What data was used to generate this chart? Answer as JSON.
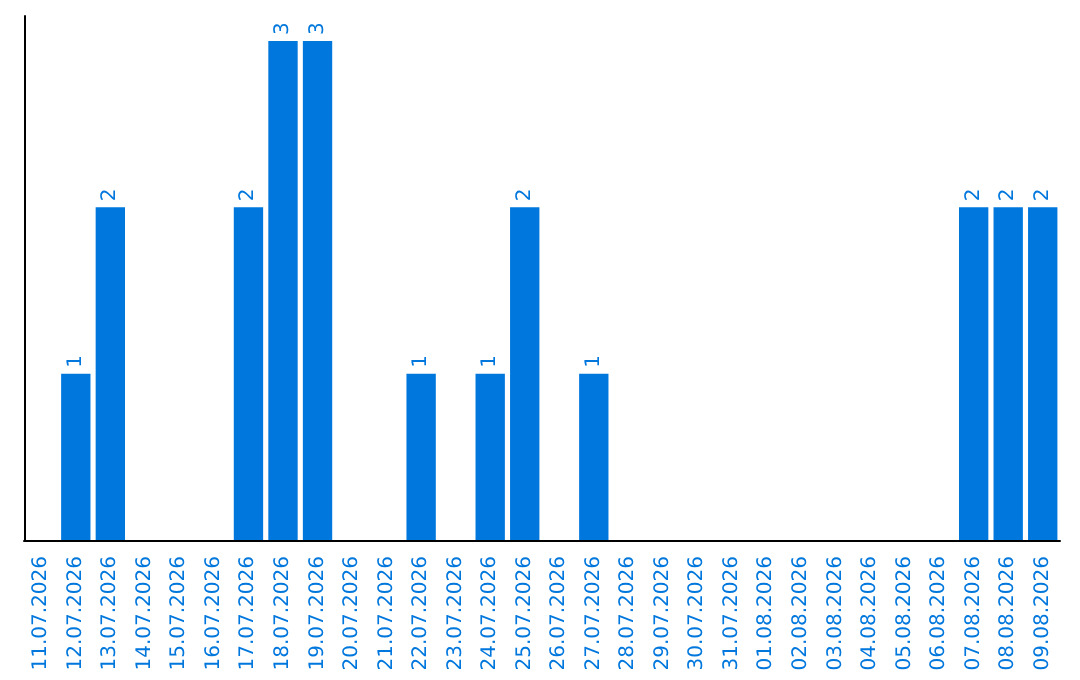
{
  "chart_data": {
    "type": "bar",
    "categories": [
      "11.07.2026",
      "12.07.2026",
      "13.07.2026",
      "14.07.2026",
      "15.07.2026",
      "16.07.2026",
      "17.07.2026",
      "18.07.2026",
      "19.07.2026",
      "20.07.2026",
      "21.07.2026",
      "22.07.2026",
      "23.07.2026",
      "24.07.2026",
      "25.07.2026",
      "26.07.2026",
      "27.07.2026",
      "28.07.2026",
      "29.07.2026",
      "30.07.2026",
      "31.07.2026",
      "01.08.2026",
      "02.08.2026",
      "03.08.2026",
      "04.08.2026",
      "05.08.2026",
      "06.08.2026",
      "07.08.2026",
      "08.08.2026",
      "09.08.2026"
    ],
    "values": [
      0,
      1,
      2,
      0,
      0,
      0,
      2,
      3,
      3,
      0,
      0,
      1,
      0,
      1,
      2,
      0,
      1,
      0,
      0,
      0,
      0,
      0,
      0,
      0,
      0,
      0,
      0,
      2,
      2,
      2
    ],
    "value_labels": [
      null,
      "1",
      "2",
      null,
      null,
      null,
      "2",
      "3",
      "3",
      null,
      null,
      "1",
      null,
      "1",
      "2",
      null,
      "1",
      null,
      null,
      null,
      null,
      null,
      null,
      null,
      null,
      null,
      null,
      "2",
      "2",
      "2"
    ],
    "color": "#0077dd",
    "grid": false,
    "tick_labels": "x"
  }
}
